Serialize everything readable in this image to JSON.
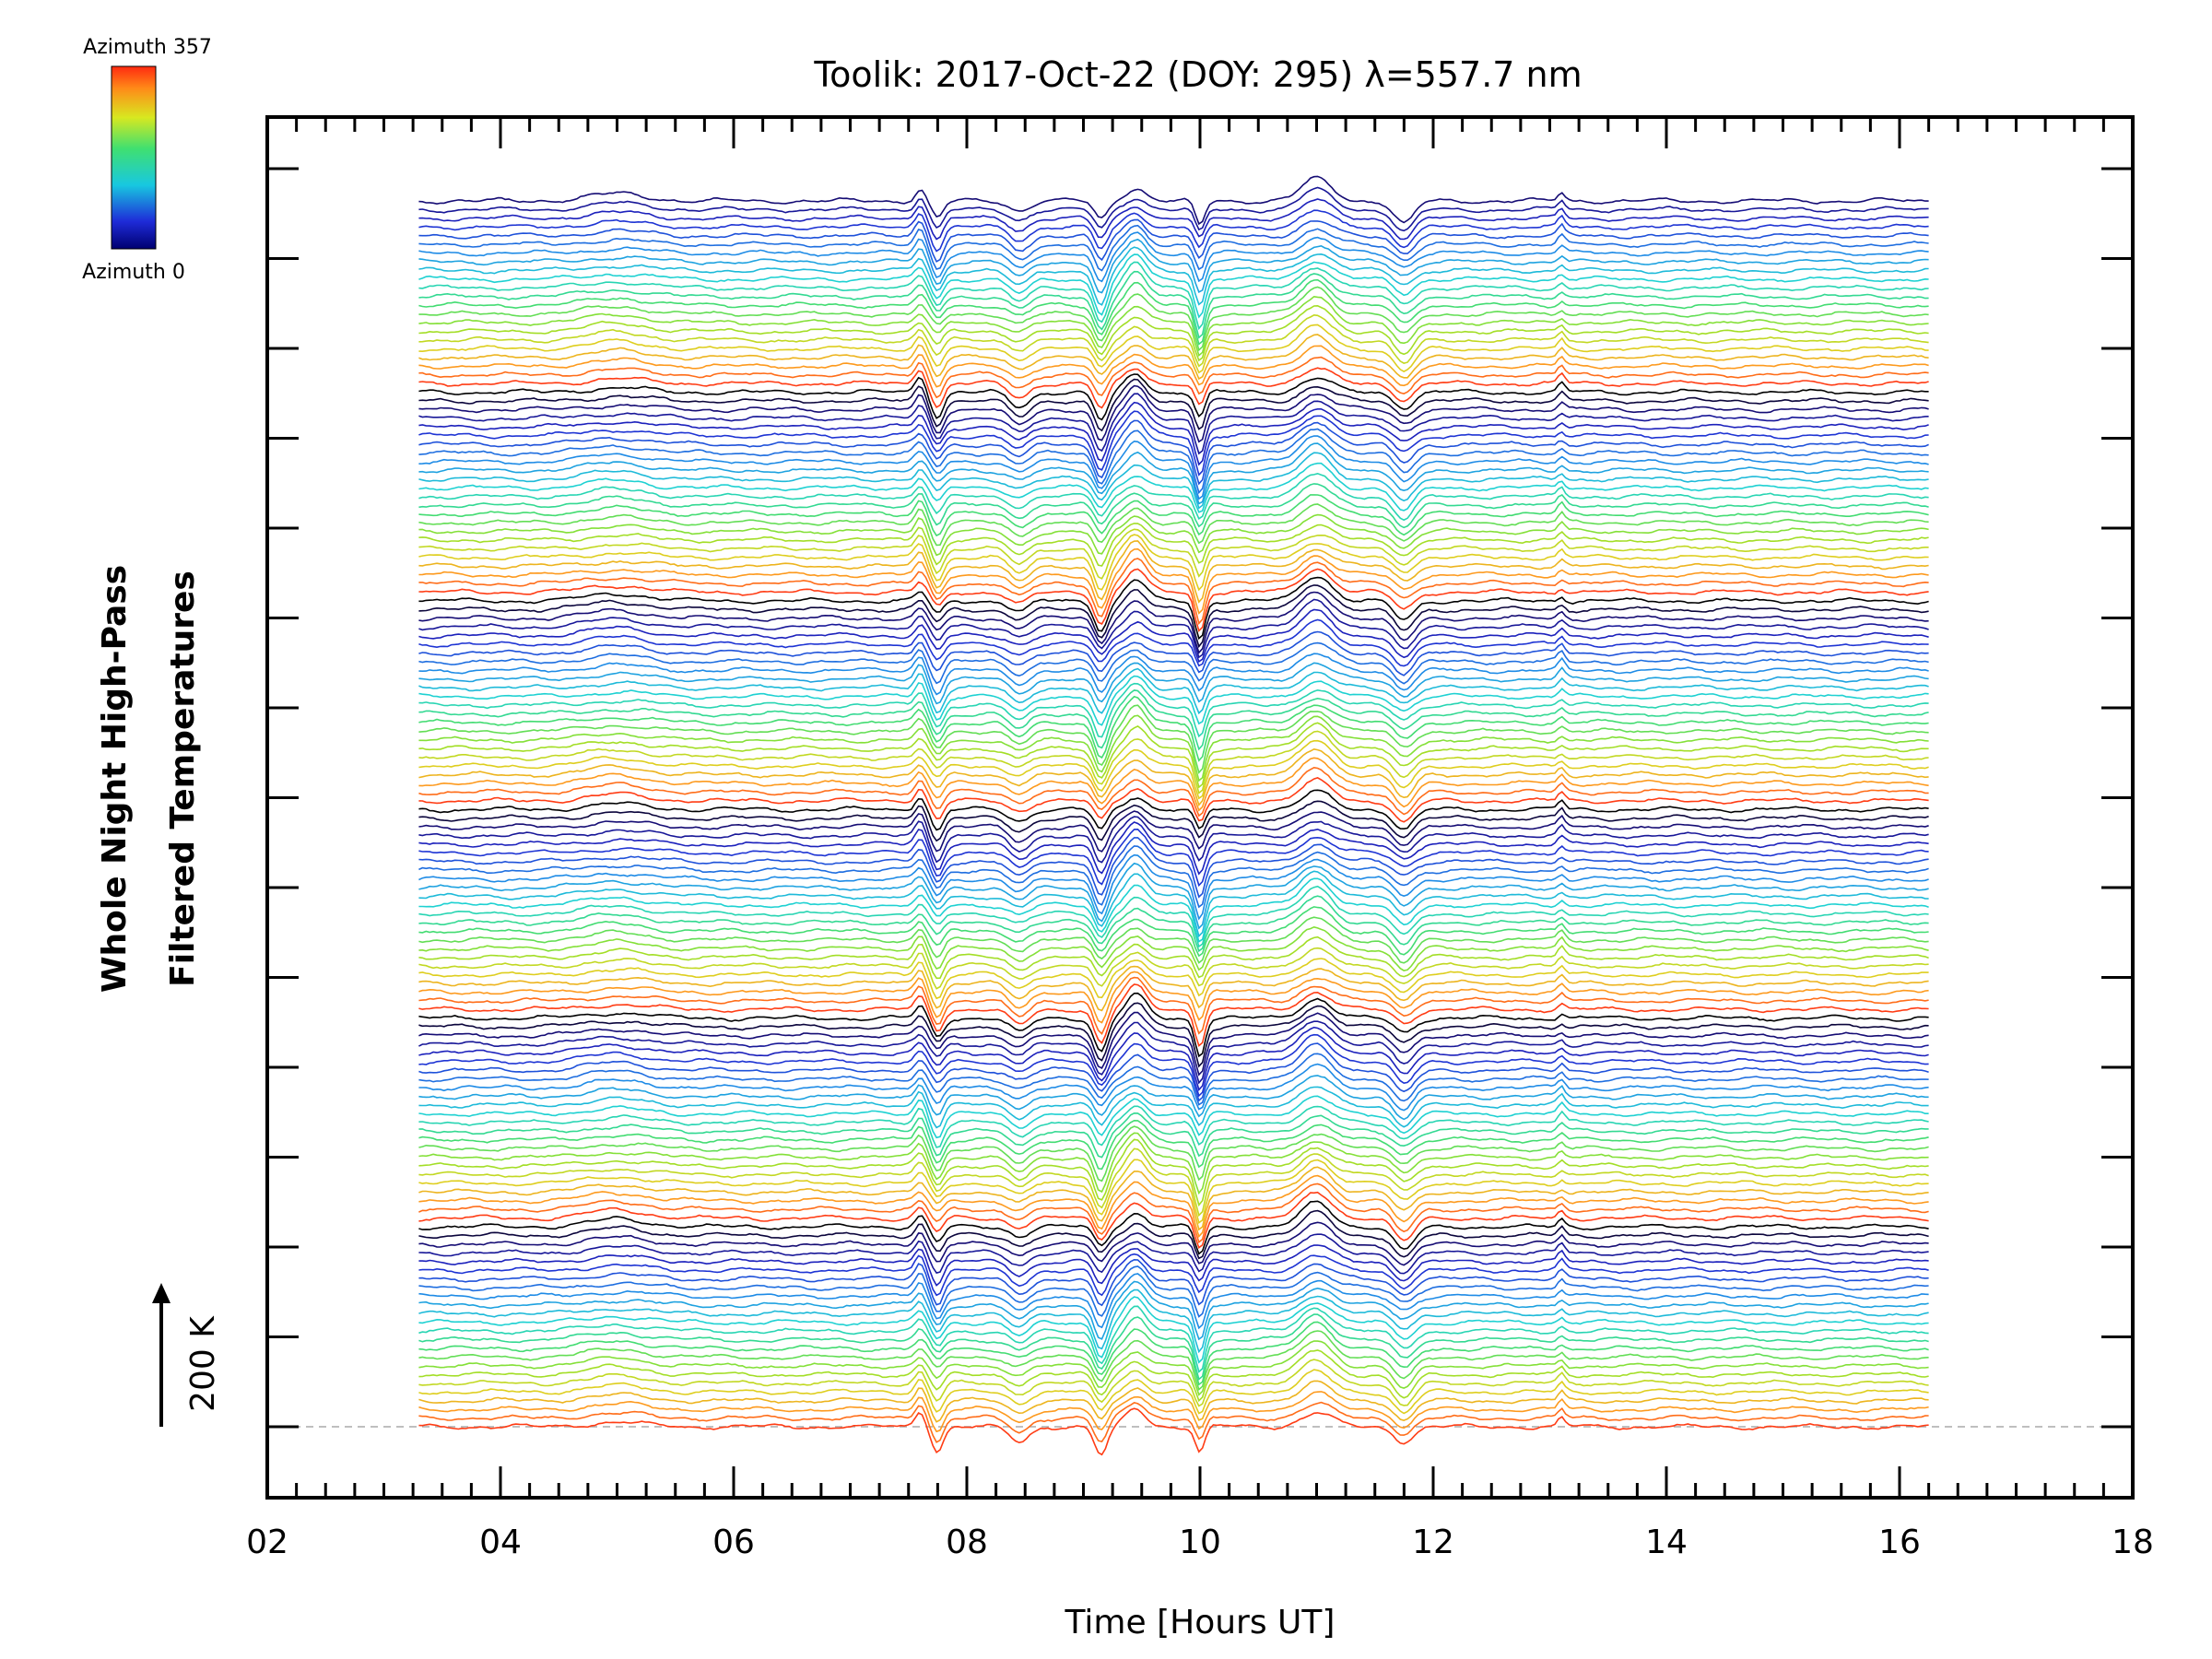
{
  "chart_data": {
    "type": "line",
    "title": "Toolik: 2017-Oct-22 (DOY: 295) λ=557.7 nm",
    "xlabel": "Time [Hours UT]",
    "ylabel_line1": "Whole Night High-Pass",
    "ylabel_line2": "Filtered Temperatures",
    "scale_bar_label": "200 K",
    "xlim": [
      2,
      18
    ],
    "x_ticks": [
      "02",
      "04",
      "06",
      "08",
      "10",
      "12",
      "14",
      "16",
      "18"
    ],
    "time_range": [
      3.3,
      16.25
    ],
    "n_traces": 142,
    "azimuth_range": [
      0,
      357
    ],
    "colorbar": {
      "top_label": "Azimuth 357",
      "bottom_label": "Azimuth 0"
    },
    "features": [
      {
        "t": 7.6,
        "amp": 0.6,
        "w": 0.06
      },
      {
        "t": 7.75,
        "amp": -0.9,
        "w": 0.07
      },
      {
        "t": 8.45,
        "amp": -0.6,
        "w": 0.12
      },
      {
        "t": 9.15,
        "amp": -1.3,
        "w": 0.08
      },
      {
        "t": 9.45,
        "amp": 0.9,
        "w": 0.12
      },
      {
        "t": 10.0,
        "amp": -1.5,
        "w": 0.06
      },
      {
        "t": 11.0,
        "amp": 1.0,
        "w": 0.18
      },
      {
        "t": 11.75,
        "amp": -0.9,
        "w": 0.12
      },
      {
        "t": 13.1,
        "amp": 0.35,
        "w": 0.04
      },
      {
        "t": 5.0,
        "amp": 0.3,
        "w": 0.35
      }
    ]
  },
  "colors": {
    "background": "#ffffff",
    "axis": "#000000",
    "baseline": "#aaaaaa"
  }
}
